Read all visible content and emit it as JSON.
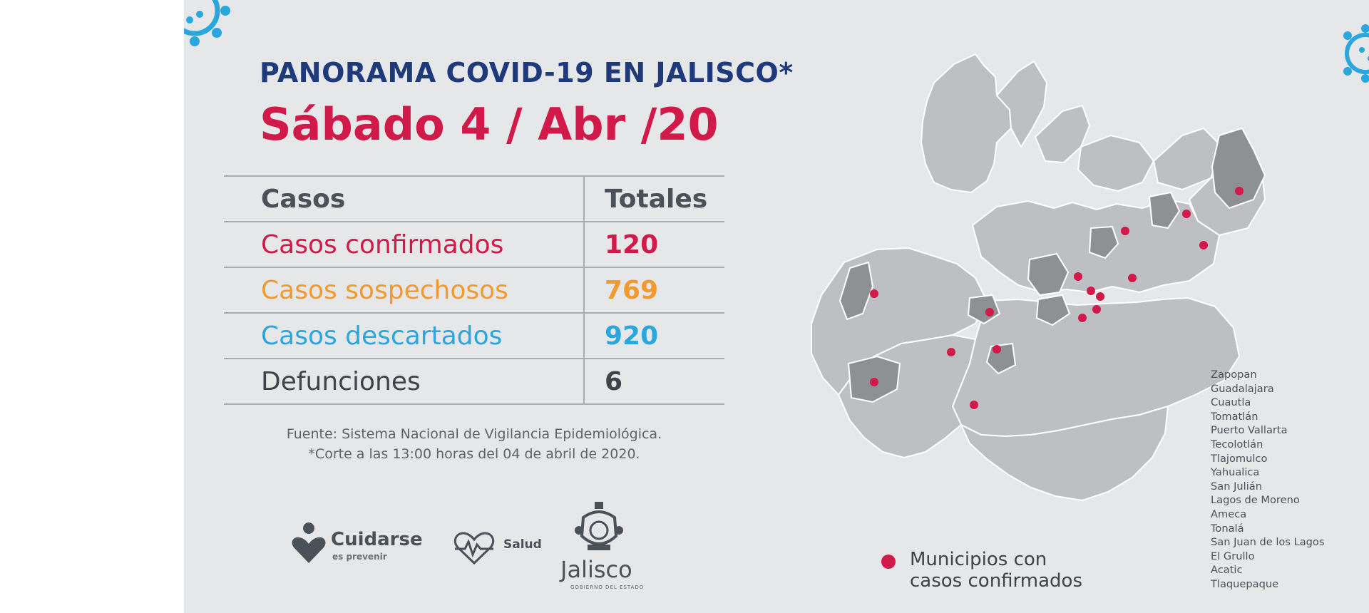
{
  "title": {
    "prefix": "PANORAMA ",
    "highlight": "COVID-19",
    "suffix": " EN JALISCO*",
    "date": "Sábado 4 / Abr /20"
  },
  "table": {
    "header": {
      "label": "Casos",
      "value": "Totales"
    },
    "rows": [
      {
        "label": "Casos confirmados",
        "value": "120"
      },
      {
        "label": "Casos sospechosos",
        "value": "769"
      },
      {
        "label": "Casos descartados",
        "value": "920"
      },
      {
        "label": "Defunciones",
        "value": "6"
      }
    ]
  },
  "source": {
    "line1": "Fuente: Sistema Nacional de Vigilancia Epidemiológica.",
    "line2": "*Corte a las 13:00 horas del 04 de abril de 2020."
  },
  "logos": {
    "cuidarse": "Cuidarse",
    "cuidarse_sub": "es prevenir",
    "salud": "Salud",
    "jalisco": "Jalisco",
    "jalisco_sub": "GOBIERNO DEL ESTADO"
  },
  "legend": {
    "line1": "Municipios con",
    "line2": "casos confirmados"
  },
  "municipios": [
    "Zapopan",
    "Guadalajara",
    "Cuautla",
    "Tomatlán",
    "Puerto Vallarta",
    "Tecolotlán",
    "Tlajomulco",
    "Yahualica",
    "San Julián",
    "Lagos de Moreno",
    "Ameca",
    "Tonalá",
    "San Juan de los Lagos",
    "El Grullo",
    "Acatic",
    "Tlaquepaque"
  ],
  "colors": {
    "navy": "#1f3a7a",
    "red": "#d11a4a",
    "orange": "#f29a2e",
    "blue": "#2aa7de",
    "gray": "#3d4349",
    "background": "#e6e7e8"
  }
}
